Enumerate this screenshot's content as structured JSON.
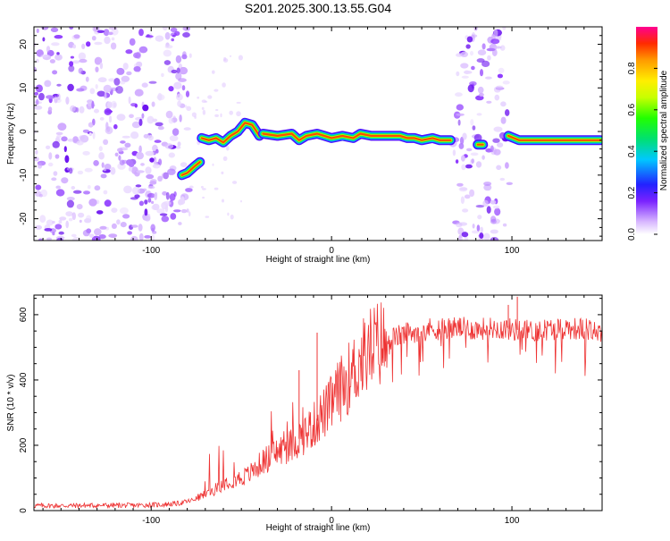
{
  "title": "S201.2025.300.13.55.G04",
  "chart_data": [
    {
      "type": "heatmap",
      "name": "spectrogram",
      "xlabel": "Height of straight line (km)",
      "ylabel": "Frequency (Hz)",
      "xlim": [
        -165,
        150
      ],
      "ylim": [
        -25,
        24
      ],
      "xticks": [
        -100,
        0,
        100
      ],
      "yticks": [
        -20,
        -10,
        0,
        10,
        20
      ],
      "colorbar": {
        "label": "Normalized spectral amplitude",
        "range": [
          0,
          1
        ],
        "ticks": [
          0.0,
          0.2,
          0.4,
          0.6,
          0.8
        ],
        "tick_labels": [
          "0.0",
          "0.2",
          "0.4",
          "0.6",
          "0.8"
        ]
      },
      "noise_regions": [
        {
          "x_range": [
            -165,
            -80
          ],
          "y_range": [
            -25,
            24
          ]
        },
        {
          "x_range": [
            68,
            97
          ],
          "y_range": [
            -25,
            24
          ]
        }
      ],
      "ridge_segments": [
        {
          "x": [
            -83,
            -80,
            -76,
            -73
          ],
          "y": [
            -10,
            -9.5,
            -8,
            -7
          ]
        },
        {
          "x": [
            -72,
            -68,
            -64,
            -60,
            -56,
            -52,
            -48,
            -44,
            -40
          ],
          "y": [
            -1.5,
            -2,
            -1.5,
            -2.5,
            -1,
            0,
            2,
            1.5,
            -1
          ]
        },
        {
          "x": [
            -38,
            -30,
            -22,
            -18,
            -14,
            -8,
            -4,
            0,
            6,
            12,
            16,
            22,
            30,
            38,
            42,
            46,
            50,
            56,
            60,
            66
          ],
          "y": [
            -0.5,
            -1,
            -0.5,
            -2,
            -1,
            -0.5,
            -1,
            -1.5,
            -1,
            -1.5,
            -0.5,
            -1,
            -1,
            -1,
            -1.5,
            -1.5,
            -2,
            -1.5,
            -2,
            -2
          ]
        },
        {
          "x": [
            81,
            84
          ],
          "y": [
            -3,
            -3
          ]
        },
        {
          "x": [
            98,
            104,
            112,
            120,
            130,
            140,
            149
          ],
          "y": [
            -1,
            -2,
            -2,
            -2,
            -2,
            -2,
            -2
          ]
        }
      ]
    },
    {
      "type": "line",
      "name": "snr",
      "xlabel": "Height of straight line (km)",
      "ylabel": "SNR (10 * v/v)",
      "xlim": [
        -165,
        150
      ],
      "ylim": [
        0,
        660
      ],
      "xticks": [
        -100,
        0,
        100
      ],
      "yticks": [
        0,
        200,
        400,
        600
      ],
      "color": "#ee3333",
      "series": [
        {
          "name": "SNR",
          "x": [
            -165,
            -150,
            -130,
            -110,
            -95,
            -85,
            -78,
            -72,
            -66,
            -62,
            -58,
            -54,
            -50,
            -46,
            -42,
            -38,
            -34,
            -30,
            -26,
            -22,
            -18,
            -14,
            -10,
            -6,
            -2,
            2,
            6,
            10,
            14,
            18,
            22,
            26,
            30,
            40,
            50,
            60,
            70,
            80,
            90,
            100,
            110,
            120,
            130,
            140,
            150
          ],
          "y": [
            15,
            15,
            16,
            16,
            18,
            22,
            30,
            45,
            60,
            75,
            90,
            95,
            100,
            110,
            130,
            150,
            165,
            180,
            190,
            200,
            220,
            240,
            260,
            290,
            310,
            350,
            380,
            410,
            440,
            470,
            500,
            510,
            520,
            540,
            555,
            560,
            560,
            555,
            560,
            555,
            550,
            555,
            560,
            555,
            550
          ]
        }
      ],
      "spikes": [
        {
          "x": -8,
          "y": 545
        },
        {
          "x": -18,
          "y": 430
        },
        {
          "x": 103,
          "y": 655
        },
        {
          "x": 98,
          "y": 630
        }
      ]
    }
  ]
}
